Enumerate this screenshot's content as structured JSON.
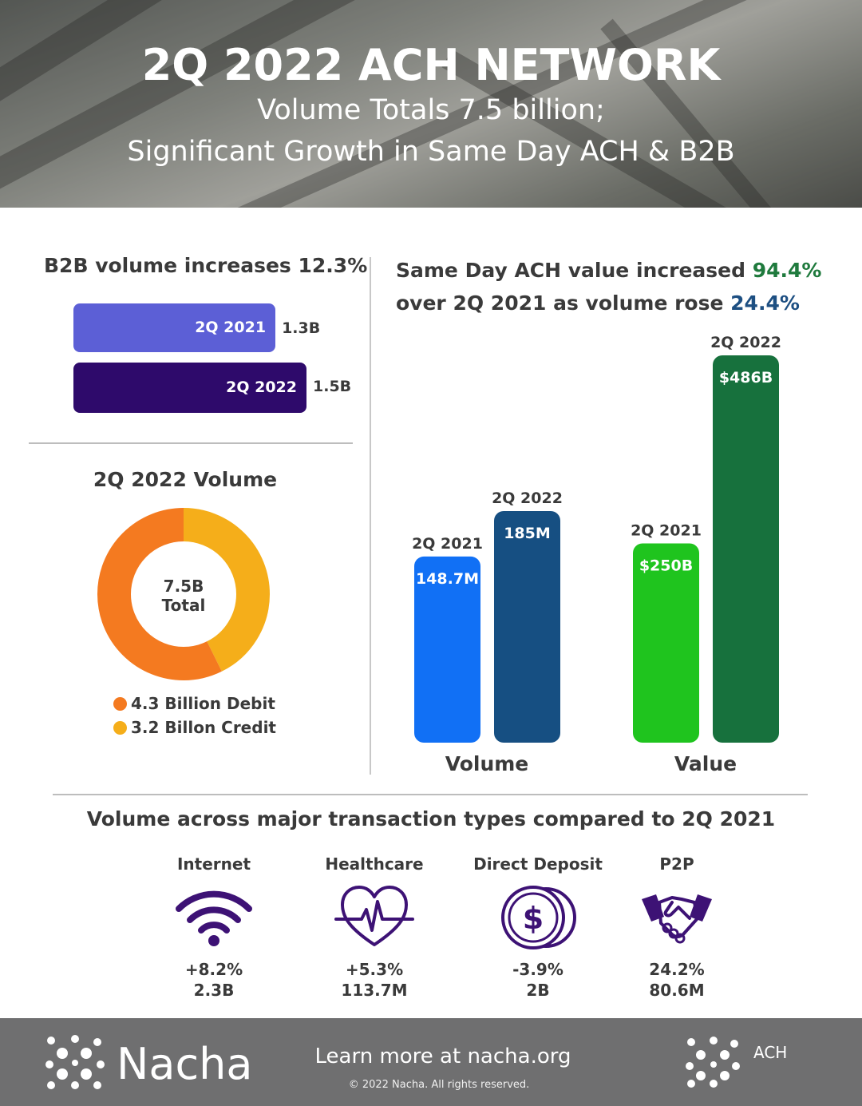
{
  "header": {
    "title": "2Q 2022 ACH NETWORK",
    "subtitle_line1": "Volume Totals 7.5 billion;",
    "subtitle_line2": "Significant Growth in Same Day ACH & B2B"
  },
  "b2b": {
    "title": "B2B volume increases 12.3%",
    "bars": [
      {
        "label": "2Q 2021",
        "value": 1.3,
        "display": "1.3B",
        "color": "#5c5fd6"
      },
      {
        "label": "2Q 2022",
        "value": 1.5,
        "display": "1.5B",
        "color": "#2e0a6b"
      }
    ]
  },
  "volume_donut": {
    "title": "2Q 2022 Volume",
    "center_value": "7.5B",
    "center_label": "Total",
    "legend_debit": "4.3 Billion Debit",
    "legend_credit": "3.2 Billon Credit"
  },
  "same_day": {
    "title_part1": "Same Day ACH value increased",
    "value_pct": "94.4%",
    "title_part2": "over 2Q 2021 as volume rose",
    "volume_pct": "24.4%",
    "group_volume": "Volume",
    "group_value": "Value"
  },
  "chart_data": [
    {
      "type": "bar",
      "title": "B2B volume increases 12.3%",
      "categories": [
        "2Q 2021",
        "2Q 2022"
      ],
      "values": [
        1.3,
        1.5
      ],
      "unit": "B",
      "orientation": "horizontal"
    },
    {
      "type": "pie",
      "title": "2Q 2022 Volume",
      "donut": true,
      "labels": [
        "4.3 Billion Debit",
        "3.2 Billon Credit"
      ],
      "values": [
        4.3,
        3.2
      ],
      "colors": [
        "#f47a20",
        "#f5ae1a"
      ]
    },
    {
      "type": "bar",
      "group": "Volume",
      "categories": [
        "2Q 2021",
        "2Q 2022"
      ],
      "values": [
        148.7,
        185
      ],
      "display": [
        "148.7M",
        "185M"
      ],
      "colors": [
        "#1170f5",
        "#164f82"
      ]
    },
    {
      "type": "bar",
      "group": "Value",
      "categories": [
        "2Q 2021",
        "2Q 2022"
      ],
      "values": [
        250,
        486
      ],
      "display": [
        "$250B",
        "$486B"
      ],
      "colors": [
        "#1fc41e",
        "#17713d"
      ]
    }
  ],
  "transactions": {
    "title": "Volume across major transaction types compared to 2Q 2021",
    "items": [
      {
        "label": "Internet",
        "change": "+8.2%",
        "total": "2.3B",
        "icon": "wifi-icon"
      },
      {
        "label": "Healthcare",
        "change": "+5.3%",
        "total": "113.7M",
        "icon": "heart-pulse-icon"
      },
      {
        "label": "Direct Deposit",
        "change": "-3.9%",
        "total": "2B",
        "icon": "dollar-coins-icon"
      },
      {
        "label": "P2P",
        "change": "24.2%",
        "total": "80.6M",
        "icon": "handshake-icon"
      }
    ]
  },
  "footer": {
    "brand": "Nacha",
    "cta": "Learn more at nacha.org",
    "copyright": "© 2022 Nacha. All rights reserved.",
    "ach_label": "ACH"
  },
  "colors": {
    "purple": "#3d1275",
    "footer_bg": "#6f6f70"
  }
}
